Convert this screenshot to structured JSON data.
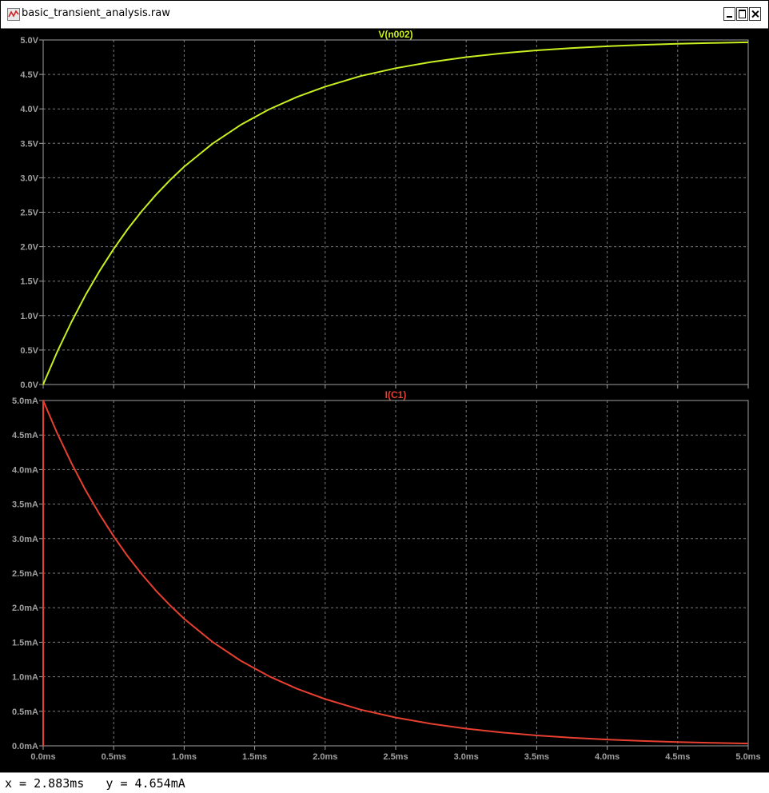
{
  "window": {
    "title": "basic_transient_analysis.raw"
  },
  "status": {
    "readout": "x = 2.883ms   y = 4.654mA"
  },
  "colors": {
    "background": "#000000",
    "grid": "#7a7a7a",
    "frame": "#a0a0a0",
    "tick_text": "#a0a0a0",
    "voltage_trace": "#c8f020",
    "current_trace": "#e84030"
  },
  "icons": {
    "app": "waveform-icon",
    "minimize": "minimize-icon",
    "maximize": "maximize-icon",
    "close": "close-icon"
  },
  "chart_data": [
    {
      "type": "line",
      "title": "V(n002)",
      "xlim": [
        0,
        5.0
      ],
      "ylim": [
        0,
        5.0
      ],
      "x_ticks": [
        0,
        0.5,
        1.0,
        1.5,
        2.0,
        2.5,
        3.0,
        3.5,
        4.0,
        4.5,
        5.0
      ],
      "x_tick_labels": [
        "0.0ms",
        "0.5ms",
        "1.0ms",
        "1.5ms",
        "2.0ms",
        "2.5ms",
        "3.0ms",
        "3.5ms",
        "4.0ms",
        "4.5ms",
        "5.0ms"
      ],
      "y_ticks": [
        0,
        0.5,
        1.0,
        1.5,
        2.0,
        2.5,
        3.0,
        3.5,
        4.0,
        4.5,
        5.0
      ],
      "y_tick_labels": [
        "0.0V",
        "0.5V",
        "1.0V",
        "1.5V",
        "2.0V",
        "2.5V",
        "3.0V",
        "3.5V",
        "4.0V",
        "4.5V",
        "5.0V"
      ],
      "grid": true,
      "series": [
        {
          "x": [
            0,
            0.1,
            0.2,
            0.3,
            0.4,
            0.5,
            0.6,
            0.7,
            0.8,
            0.9,
            1.0,
            1.2,
            1.4,
            1.6,
            1.8,
            2.0,
            2.25,
            2.5,
            2.75,
            3.0,
            3.25,
            3.5,
            3.75,
            4.0,
            4.25,
            4.5,
            4.75,
            5.0
          ],
          "values": [
            0,
            0.475,
            0.905,
            1.296,
            1.648,
            1.967,
            2.256,
            2.517,
            2.753,
            2.967,
            3.161,
            3.494,
            3.767,
            3.991,
            4.173,
            4.323,
            4.476,
            4.59,
            4.68,
            4.751,
            4.806,
            4.849,
            4.883,
            4.908,
            4.929,
            4.945,
            4.957,
            4.966
          ]
        }
      ]
    },
    {
      "type": "line",
      "title": "I(C1)",
      "xlim": [
        0,
        5.0
      ],
      "ylim": [
        0,
        5.0
      ],
      "x_ticks": [
        0,
        0.5,
        1.0,
        1.5,
        2.0,
        2.5,
        3.0,
        3.5,
        4.0,
        4.5,
        5.0
      ],
      "x_tick_labels": [
        "0.0ms",
        "0.5ms",
        "1.0ms",
        "1.5ms",
        "2.0ms",
        "2.5ms",
        "3.0ms",
        "3.5ms",
        "4.0ms",
        "4.5ms",
        "5.0ms"
      ],
      "y_ticks": [
        0,
        0.5,
        1.0,
        1.5,
        2.0,
        2.5,
        3.0,
        3.5,
        4.0,
        4.5,
        5.0
      ],
      "y_tick_labels": [
        "0.0mA",
        "0.5mA",
        "1.0mA",
        "1.5mA",
        "2.0mA",
        "2.5mA",
        "3.0mA",
        "3.5mA",
        "4.0mA",
        "4.5mA",
        "5.0mA"
      ],
      "grid": true,
      "series": [
        {
          "x": [
            0,
            0,
            0.1,
            0.2,
            0.3,
            0.4,
            0.5,
            0.6,
            0.7,
            0.8,
            0.9,
            1.0,
            1.2,
            1.4,
            1.6,
            1.8,
            2.0,
            2.25,
            2.5,
            2.75,
            3.0,
            3.25,
            3.5,
            3.75,
            4.0,
            4.25,
            4.5,
            4.75,
            5.0
          ],
          "values": [
            0,
            5.0,
            4.525,
            4.095,
            3.704,
            3.352,
            3.033,
            2.744,
            2.483,
            2.247,
            2.033,
            1.839,
            1.506,
            1.233,
            1.009,
            0.826,
            0.677,
            0.524,
            0.41,
            0.32,
            0.249,
            0.194,
            0.151,
            0.117,
            0.092,
            0.071,
            0.055,
            0.043,
            0.034
          ]
        }
      ]
    }
  ]
}
